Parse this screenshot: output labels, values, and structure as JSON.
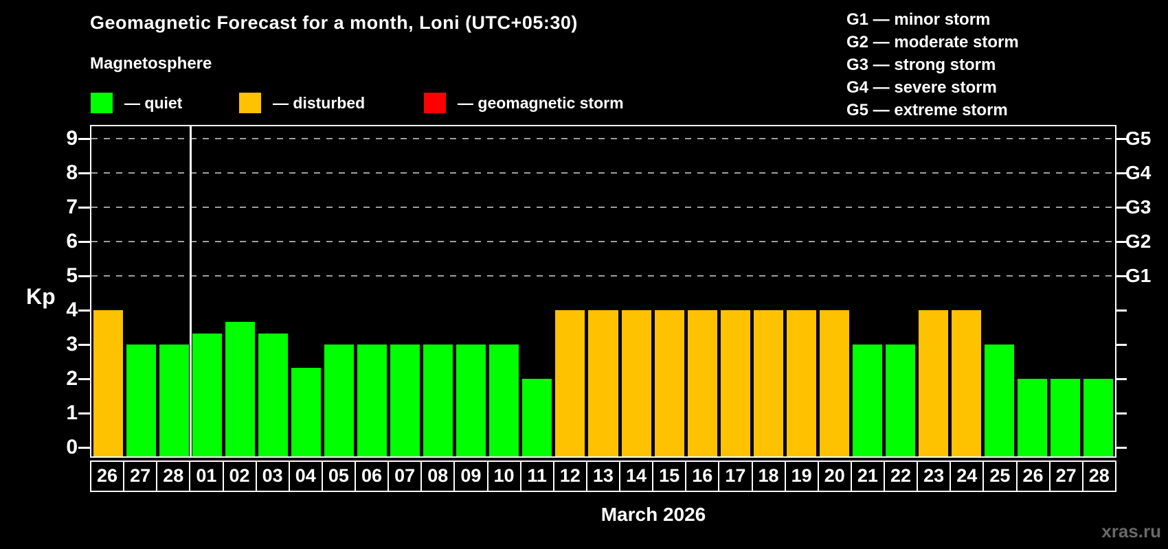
{
  "header": {
    "title": "Geomagnetic Forecast for a month, Loni (UTC+05:30)",
    "subtitle": "Magnetosphere"
  },
  "legend": {
    "items": [
      {
        "key": "quiet",
        "label": "— quiet",
        "color": "#00ff00"
      },
      {
        "key": "disturbed",
        "label": "— disturbed",
        "color": "#ffc200"
      },
      {
        "key": "storm",
        "label": "— geomagnetic storm",
        "color": "#ff0000"
      }
    ]
  },
  "storm_scale_legend": {
    "items": [
      "G1 — minor storm",
      "G2 — moderate storm",
      "G3 — strong storm",
      "G4 — severe storm",
      "G5 — extreme storm"
    ]
  },
  "chart_data": {
    "type": "bar",
    "title": "Geomagnetic Forecast for a month, Loni (UTC+05:30)",
    "ylabel": "Kp",
    "xlabel": "March 2026",
    "ylim": [
      0,
      9.6
    ],
    "yticks": [
      0,
      1,
      2,
      3,
      4,
      5,
      6,
      7,
      8,
      9
    ],
    "gridlines_at": [
      5,
      6,
      7,
      8,
      9
    ],
    "grid": "dashed-horizontal",
    "right_axis_labels": [
      {
        "kp": 5,
        "label": "G1"
      },
      {
        "kp": 6,
        "label": "G2"
      },
      {
        "kp": 7,
        "label": "G3"
      },
      {
        "kp": 8,
        "label": "G4"
      },
      {
        "kp": 9,
        "label": "G5"
      }
    ],
    "categories": [
      "26",
      "27",
      "28",
      "01",
      "02",
      "03",
      "04",
      "05",
      "06",
      "07",
      "08",
      "09",
      "10",
      "11",
      "12",
      "13",
      "14",
      "15",
      "16",
      "17",
      "18",
      "19",
      "20",
      "21",
      "22",
      "23",
      "24",
      "25",
      "26",
      "27",
      "28"
    ],
    "values": [
      4,
      3,
      3,
      3.33,
      3.67,
      3.33,
      2.33,
      3,
      3,
      3,
      3,
      3,
      3,
      2,
      4,
      4,
      4,
      4,
      4,
      4,
      4,
      4,
      4,
      3,
      3,
      4,
      4,
      3,
      2,
      2,
      2
    ],
    "states": [
      "disturbed",
      "quiet",
      "quiet",
      "quiet",
      "quiet",
      "quiet",
      "quiet",
      "quiet",
      "quiet",
      "quiet",
      "quiet",
      "quiet",
      "quiet",
      "quiet",
      "disturbed",
      "disturbed",
      "disturbed",
      "disturbed",
      "disturbed",
      "disturbed",
      "disturbed",
      "disturbed",
      "disturbed",
      "quiet",
      "quiet",
      "disturbed",
      "disturbed",
      "quiet",
      "quiet",
      "quiet",
      "quiet"
    ],
    "colors": {
      "quiet": "#00ff00",
      "disturbed": "#ffc200",
      "storm": "#ff0000"
    },
    "month_separator_after_index": 2
  },
  "footer": {
    "xaxis_title": "March 2026",
    "watermark": "xras.ru"
  }
}
